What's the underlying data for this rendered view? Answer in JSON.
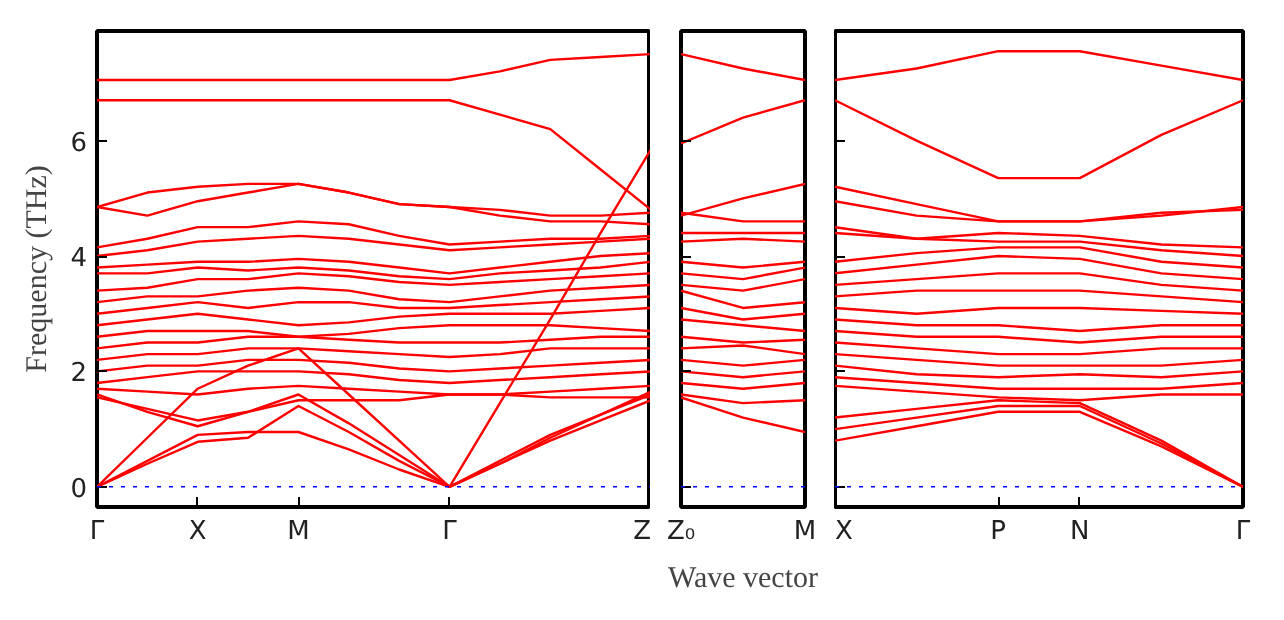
{
  "chart_data": [
    {
      "type": "line",
      "ylabel": "Frequency (THz)",
      "ylim": [
        -0.35,
        7.9
      ],
      "yticks": [
        0,
        2,
        4,
        6
      ],
      "grid": false,
      "line_style": "solid",
      "categories": [
        "Γ",
        null,
        "X",
        null,
        "M",
        null,
        null,
        "Γ",
        null,
        null,
        null,
        "Z"
      ],
      "ref_lines": [
        {
          "axis": "y",
          "value": 0,
          "color": "#0000ff",
          "line_style": "dotted"
        }
      ],
      "series": [
        {
          "color": "#ff0000",
          "values": [
            7.05,
            7.05,
            7.05,
            7.05,
            7.05,
            7.05,
            7.05,
            7.05,
            7.2,
            7.4,
            7.45,
            7.5
          ]
        },
        {
          "color": "#ff0000",
          "values": [
            6.7,
            6.7,
            6.7,
            6.7,
            6.7,
            6.7,
            6.7,
            6.7,
            6.45,
            6.2,
            5.5,
            4.8
          ]
        },
        {
          "color": "#ff0000",
          "values": [
            4.85,
            5.1,
            5.2,
            5.25,
            5.25,
            5.1,
            4.9,
            4.85,
            4.8,
            4.7,
            4.7,
            4.75
          ]
        },
        {
          "color": "#ff0000",
          "values": [
            4.85,
            4.7,
            4.95,
            5.1,
            5.25,
            5.1,
            4.9,
            4.85,
            4.7,
            4.6,
            4.6,
            4.55
          ]
        },
        {
          "color": "#ff0000",
          "values": [
            4.15,
            4.3,
            4.5,
            4.5,
            4.6,
            4.55,
            4.35,
            4.2,
            4.25,
            4.3,
            4.3,
            4.35
          ]
        },
        {
          "color": "#ff0000",
          "values": [
            4.0,
            4.1,
            4.25,
            4.3,
            4.35,
            4.3,
            4.2,
            4.1,
            4.15,
            4.2,
            4.25,
            4.3
          ]
        },
        {
          "color": "#ff0000",
          "values": [
            3.8,
            3.85,
            3.9,
            3.9,
            3.95,
            3.9,
            3.8,
            3.7,
            3.8,
            3.9,
            4.0,
            4.05
          ]
        },
        {
          "color": "#ff0000",
          "values": [
            3.7,
            3.7,
            3.8,
            3.75,
            3.8,
            3.75,
            3.65,
            3.6,
            3.7,
            3.75,
            3.8,
            3.9
          ]
        },
        {
          "color": "#ff0000",
          "values": [
            3.4,
            3.45,
            3.6,
            3.6,
            3.7,
            3.65,
            3.55,
            3.5,
            3.55,
            3.6,
            3.65,
            3.7
          ]
        },
        {
          "color": "#ff0000",
          "values": [
            3.2,
            3.3,
            3.3,
            3.4,
            3.45,
            3.4,
            3.25,
            3.2,
            3.3,
            3.4,
            3.45,
            3.5
          ]
        },
        {
          "color": "#ff0000",
          "values": [
            3.0,
            3.1,
            3.2,
            3.1,
            3.2,
            3.2,
            3.1,
            3.1,
            3.15,
            3.2,
            3.25,
            3.3
          ]
        },
        {
          "color": "#ff0000",
          "values": [
            2.8,
            2.9,
            3.0,
            2.9,
            2.8,
            2.85,
            2.95,
            3.0,
            3.0,
            3.0,
            3.05,
            3.1
          ]
        },
        {
          "color": "#ff0000",
          "values": [
            2.6,
            2.7,
            2.7,
            2.7,
            2.6,
            2.65,
            2.75,
            2.8,
            2.8,
            2.8,
            2.75,
            2.7
          ]
        },
        {
          "color": "#ff0000",
          "values": [
            2.4,
            2.5,
            2.5,
            2.6,
            2.6,
            2.55,
            2.5,
            2.5,
            2.5,
            2.55,
            2.6,
            2.6
          ]
        },
        {
          "color": "#ff0000",
          "values": [
            2.2,
            2.3,
            2.3,
            2.4,
            2.4,
            2.35,
            2.3,
            2.25,
            2.3,
            2.4,
            2.4,
            2.4
          ]
        },
        {
          "color": "#ff0000",
          "values": [
            2.0,
            2.1,
            2.1,
            2.2,
            2.2,
            2.15,
            2.05,
            2.0,
            2.05,
            2.1,
            2.15,
            2.2
          ]
        },
        {
          "color": "#ff0000",
          "values": [
            1.8,
            1.9,
            2.0,
            2.0,
            2.0,
            1.95,
            1.85,
            1.8,
            1.85,
            1.9,
            1.95,
            2.0
          ]
        },
        {
          "color": "#ff0000",
          "values": [
            1.7,
            1.65,
            1.6,
            1.7,
            1.75,
            1.7,
            1.65,
            1.6,
            1.6,
            1.65,
            1.7,
            1.75
          ]
        },
        {
          "color": "#ff0000",
          "values": [
            1.55,
            1.35,
            1.15,
            1.3,
            1.5,
            1.5,
            1.5,
            1.6,
            1.6,
            1.55,
            1.55,
            1.55
          ]
        },
        {
          "color": "#ff0000",
          "values": [
            0,
            0.85,
            1.7,
            2.1,
            2.4,
            1.6,
            0.8,
            0,
            1.45,
            2.9,
            4.4,
            5.85
          ]
        },
        {
          "color": "#ff0000",
          "values": [
            0,
            0.45,
            0.9,
            0.95,
            0.95,
            0.65,
            0.3,
            0,
            0.4,
            0.8,
            1.15,
            1.5
          ]
        },
        {
          "color": "#ff0000",
          "values": [
            0,
            0.4,
            0.78,
            0.85,
            1.4,
            0.95,
            0.45,
            0,
            0.4,
            0.85,
            1.25,
            1.65
          ]
        },
        {
          "color": "#ff0000",
          "values": [
            1.6,
            1.3,
            1.05,
            1.3,
            1.6,
            1.1,
            0.55,
            0,
            0.45,
            0.9,
            1.25,
            1.6
          ]
        }
      ]
    },
    {
      "type": "line",
      "xlabel": "Wave vector",
      "ylim": [
        -0.35,
        7.9
      ],
      "yticks": [
        0,
        2,
        4,
        6
      ],
      "grid": false,
      "line_style": "solid",
      "tick_labels": "x",
      "categories": [
        "Z₀",
        null,
        "M"
      ],
      "ref_lines": [
        {
          "axis": "y",
          "value": 0,
          "color": "#0000ff",
          "line_style": "dotted"
        }
      ],
      "series": [
        {
          "color": "#ff0000",
          "values": [
            7.5,
            7.25,
            7.05
          ]
        },
        {
          "color": "#ff0000",
          "values": [
            5.95,
            6.4,
            6.7
          ]
        },
        {
          "color": "#ff0000",
          "values": [
            4.7,
            5.0,
            5.25
          ]
        },
        {
          "color": "#ff0000",
          "values": [
            4.75,
            4.6,
            4.6
          ]
        },
        {
          "color": "#ff0000",
          "values": [
            4.4,
            4.4,
            4.4
          ]
        },
        {
          "color": "#ff0000",
          "values": [
            4.25,
            4.3,
            4.25
          ]
        },
        {
          "color": "#ff0000",
          "values": [
            3.9,
            3.8,
            3.9
          ]
        },
        {
          "color": "#ff0000",
          "values": [
            3.7,
            3.6,
            3.8
          ]
        },
        {
          "color": "#ff0000",
          "values": [
            3.5,
            3.4,
            3.6
          ]
        },
        {
          "color": "#ff0000",
          "values": [
            3.4,
            3.1,
            3.2
          ]
        },
        {
          "color": "#ff0000",
          "values": [
            3.1,
            2.9,
            3.0
          ]
        },
        {
          "color": "#ff0000",
          "values": [
            2.9,
            2.8,
            2.7
          ]
        },
        {
          "color": "#ff0000",
          "values": [
            2.6,
            2.5,
            2.55
          ]
        },
        {
          "color": "#ff0000",
          "values": [
            2.4,
            2.45,
            2.3
          ]
        },
        {
          "color": "#ff0000",
          "values": [
            2.2,
            2.1,
            2.2
          ]
        },
        {
          "color": "#ff0000",
          "values": [
            2.0,
            1.9,
            2.0
          ]
        },
        {
          "color": "#ff0000",
          "values": [
            1.8,
            1.7,
            1.8
          ]
        },
        {
          "color": "#ff0000",
          "values": [
            1.6,
            1.45,
            1.5
          ]
        },
        {
          "color": "#ff0000",
          "values": [
            1.55,
            1.2,
            0.95
          ]
        }
      ]
    },
    {
      "type": "line",
      "ylim": [
        -0.35,
        7.9
      ],
      "yticks": [
        0,
        2,
        4,
        6
      ],
      "grid": false,
      "line_style": "solid",
      "tick_labels": "x",
      "categories": [
        "X",
        null,
        "P",
        "N",
        null,
        "Γ"
      ],
      "ref_lines": [
        {
          "axis": "y",
          "value": 0,
          "color": "#0000ff",
          "line_style": "dotted"
        }
      ],
      "series": [
        {
          "color": "#ff0000",
          "values": [
            7.05,
            7.25,
            7.55,
            7.55,
            7.3,
            7.05
          ]
        },
        {
          "color": "#ff0000",
          "values": [
            6.7,
            6.0,
            5.35,
            5.35,
            6.1,
            6.7
          ]
        },
        {
          "color": "#ff0000",
          "values": [
            5.2,
            4.9,
            4.6,
            4.6,
            4.7,
            4.85
          ]
        },
        {
          "color": "#ff0000",
          "values": [
            4.95,
            4.7,
            4.6,
            4.6,
            4.75,
            4.8
          ]
        },
        {
          "color": "#ff0000",
          "values": [
            4.5,
            4.3,
            4.4,
            4.35,
            4.2,
            4.15
          ]
        },
        {
          "color": "#ff0000",
          "values": [
            4.4,
            4.3,
            4.25,
            4.25,
            4.1,
            4.0
          ]
        },
        {
          "color": "#ff0000",
          "values": [
            3.9,
            4.05,
            4.15,
            4.15,
            3.9,
            3.8
          ]
        },
        {
          "color": "#ff0000",
          "values": [
            3.7,
            3.85,
            4.0,
            3.95,
            3.7,
            3.6
          ]
        },
        {
          "color": "#ff0000",
          "values": [
            3.5,
            3.6,
            3.7,
            3.7,
            3.5,
            3.4
          ]
        },
        {
          "color": "#ff0000",
          "values": [
            3.3,
            3.4,
            3.4,
            3.4,
            3.3,
            3.2
          ]
        },
        {
          "color": "#ff0000",
          "values": [
            3.1,
            3.0,
            3.1,
            3.1,
            3.05,
            3.0
          ]
        },
        {
          "color": "#ff0000",
          "values": [
            2.9,
            2.8,
            2.8,
            2.7,
            2.8,
            2.8
          ]
        },
        {
          "color": "#ff0000",
          "values": [
            2.7,
            2.6,
            2.6,
            2.5,
            2.6,
            2.6
          ]
        },
        {
          "color": "#ff0000",
          "values": [
            2.5,
            2.4,
            2.3,
            2.3,
            2.4,
            2.4
          ]
        },
        {
          "color": "#ff0000",
          "values": [
            2.3,
            2.2,
            2.1,
            2.1,
            2.1,
            2.2
          ]
        },
        {
          "color": "#ff0000",
          "values": [
            2.1,
            1.95,
            1.9,
            1.95,
            1.9,
            2.0
          ]
        },
        {
          "color": "#ff0000",
          "values": [
            1.9,
            1.8,
            1.7,
            1.7,
            1.7,
            1.8
          ]
        },
        {
          "color": "#ff0000",
          "values": [
            1.75,
            1.65,
            1.55,
            1.5,
            1.6,
            1.6
          ]
        },
        {
          "color": "#ff0000",
          "values": [
            1.2,
            1.35,
            1.5,
            1.45,
            0.8,
            0
          ]
        },
        {
          "color": "#ff0000",
          "values": [
            1.0,
            1.2,
            1.4,
            1.4,
            0.75,
            0
          ]
        },
        {
          "color": "#ff0000",
          "values": [
            0.8,
            1.05,
            1.3,
            1.3,
            0.7,
            0
          ]
        }
      ]
    }
  ]
}
